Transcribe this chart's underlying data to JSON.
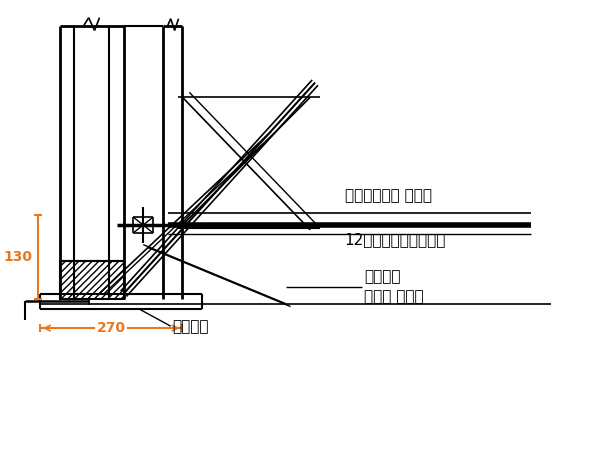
{
  "bg_color": "#ffffff",
  "line_color": "#000000",
  "dim_color": "#e87722",
  "text_color": "#000000",
  "label_130": "130",
  "label_270": "270",
  "label_dijiao": "地脚螺栓",
  "label_wailian": "外连杆（周转 使用）",
  "label_12hao": "12号槽钔（周转使用）",
  "label_lianjie1": "连接螺母",
  "label_lianjie2": "（周转 使用）",
  "figsize": [
    6.0,
    4.5
  ],
  "dpi": 100
}
